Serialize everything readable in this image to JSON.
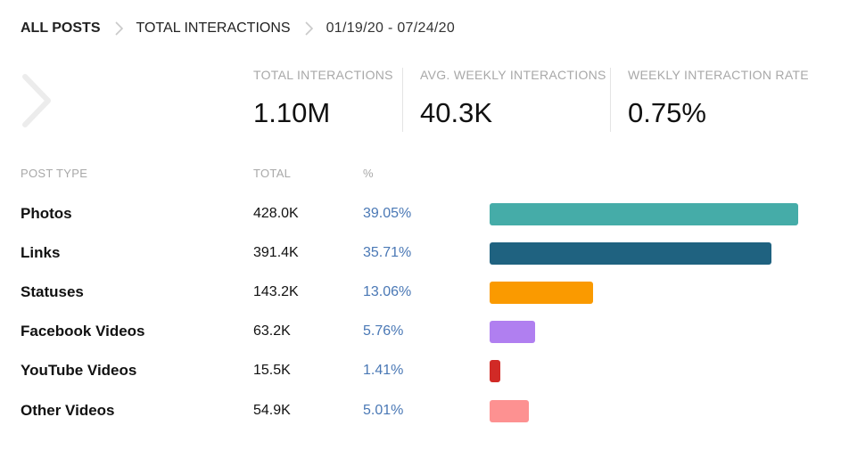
{
  "breadcrumb": {
    "items": [
      "ALL POSTS",
      "TOTAL INTERACTIONS"
    ],
    "date_range": "01/19/20 - 07/24/20"
  },
  "stats": [
    {
      "label": "TOTAL INTERACTIONS",
      "value": "1.10M"
    },
    {
      "label": "AVG. WEEKLY INTERACTIONS",
      "value": "40.3K"
    },
    {
      "label": "WEEKLY INTERACTION RATE",
      "value": "0.75%"
    }
  ],
  "table": {
    "headers": {
      "type": "POST TYPE",
      "total": "TOTAL",
      "pct": "%"
    },
    "rows": [
      {
        "type": "Photos",
        "total": "428.0K",
        "pct": "39.05%",
        "share": 39.05,
        "color": "#45aca8"
      },
      {
        "type": "Links",
        "total": "391.4K",
        "pct": "35.71%",
        "share": 35.71,
        "color": "#1f6280"
      },
      {
        "type": "Statuses",
        "total": "143.2K",
        "pct": "13.06%",
        "share": 13.06,
        "color": "#fa9a00"
      },
      {
        "type": "Facebook Videos",
        "total": "63.2K",
        "pct": "5.76%",
        "share": 5.76,
        "color": "#b07ff0"
      },
      {
        "type": "YouTube Videos",
        "total": "15.5K",
        "pct": "1.41%",
        "share": 1.41,
        "color": "#d12a26"
      },
      {
        "type": "Other Videos",
        "total": "54.9K",
        "pct": "5.01%",
        "share": 5.01,
        "color": "#fd9191"
      }
    ]
  },
  "icons": {
    "crumb_sep": "chevron-right-icon",
    "nav": "chevron-right-large-icon"
  }
}
